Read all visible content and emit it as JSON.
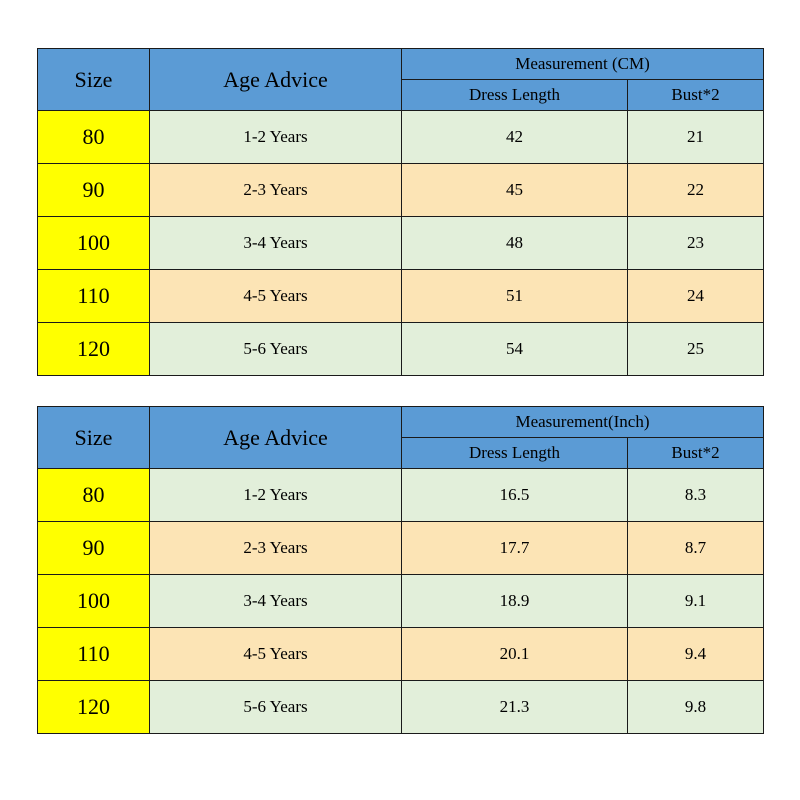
{
  "tables": [
    {
      "headers": {
        "size": "Size",
        "age": "Age Advice",
        "group": "Measurement (CM)",
        "length": "Dress Length",
        "bust": "Bust*2"
      },
      "rows": [
        {
          "size": "80",
          "age": "1-2 Years",
          "length": "42",
          "bust": "21"
        },
        {
          "size": "90",
          "age": "2-3 Years",
          "length": "45",
          "bust": "22"
        },
        {
          "size": "100",
          "age": "3-4 Years",
          "length": "48",
          "bust": "23"
        },
        {
          "size": "110",
          "age": "4-5 Years",
          "length": "51",
          "bust": "24"
        },
        {
          "size": "120",
          "age": "5-6 Years",
          "length": "54",
          "bust": "25"
        }
      ]
    },
    {
      "headers": {
        "size": "Size",
        "age": "Age Advice",
        "group": "Measurement(Inch)",
        "length": "Dress Length",
        "bust": "Bust*2"
      },
      "rows": [
        {
          "size": "80",
          "age": "1-2 Years",
          "length": "16.5",
          "bust": "8.3"
        },
        {
          "size": "90",
          "age": "2-3 Years",
          "length": "17.7",
          "bust": "8.7"
        },
        {
          "size": "100",
          "age": "3-4 Years",
          "length": "18.9",
          "bust": "9.1"
        },
        {
          "size": "110",
          "age": "4-5 Years",
          "length": "20.1",
          "bust": "9.4"
        },
        {
          "size": "120",
          "age": "5-6 Years",
          "length": "21.3",
          "bust": "9.8"
        }
      ]
    }
  ],
  "colors": {
    "header_blue": "#5b9bd5",
    "size_yellow": "#ffff00",
    "row_green": "#e2efda",
    "row_orange": "#fce4b5"
  }
}
